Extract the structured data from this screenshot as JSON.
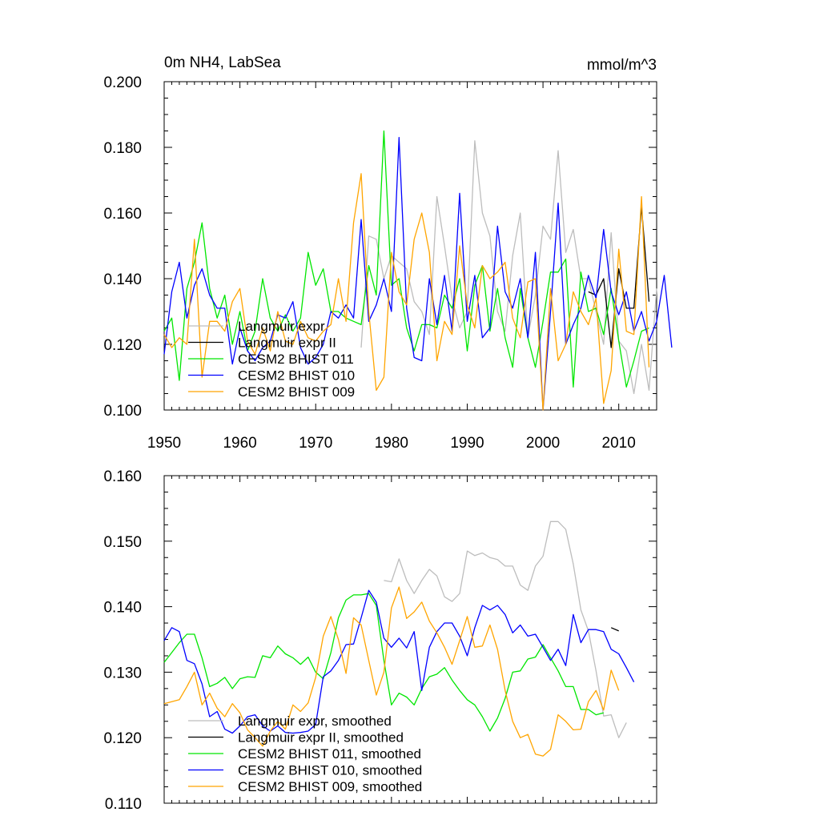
{
  "chart_data": [
    {
      "type": "line",
      "title": "0m NH4, LabSea",
      "units": "mmol/m^3",
      "xlim": [
        1950,
        2015
      ],
      "ylim": [
        0.1,
        0.2
      ],
      "x_ticks": [
        1950,
        1960,
        1970,
        1980,
        1990,
        2000,
        2010
      ],
      "y_ticks": [
        0.1,
        0.12,
        0.14,
        0.16,
        0.18,
        0.2
      ],
      "x_tick_labels": [
        "1950",
        "1960",
        "1970",
        "1980",
        "1990",
        "2000",
        "2010"
      ],
      "y_tick_labels": [
        "0.100",
        "0.120",
        "0.140",
        "0.160",
        "0.180",
        "0.200"
      ],
      "legend_position": "lower-left",
      "series": [
        {
          "name": "Langmuir expr",
          "color": "#bdbdbd",
          "x_start": 1976,
          "values": [
            0.119,
            0.153,
            0.152,
            0.14,
            0.147,
            0.145,
            0.143,
            0.133,
            0.13,
            0.123,
            0.165,
            0.15,
            0.134,
            0.125,
            0.13,
            0.182,
            0.16,
            0.153,
            0.13,
            0.124,
            0.147,
            0.16,
            0.122,
            0.135,
            0.156,
            0.152,
            0.179,
            0.148,
            0.155,
            0.14,
            0.14,
            0.13,
            0.12,
            0.154,
            0.121,
            0.118,
            0.105,
            0.12,
            0.106,
            0.137
          ]
        },
        {
          "name": "Langmuir expr II",
          "color": "#000000",
          "x_start": 2006,
          "values": [
            0.136,
            0.135,
            0.14,
            0.119,
            0.143,
            0.131,
            0.131,
            0.162,
            0.133
          ]
        },
        {
          "name": "CESM2 BHIST 011",
          "color": "#00e600",
          "x_start": 1950,
          "values": [
            0.124,
            0.128,
            0.109,
            0.137,
            0.145,
            0.157,
            0.137,
            0.128,
            0.135,
            0.12,
            0.13,
            0.118,
            0.124,
            0.14,
            0.128,
            0.124,
            0.129,
            0.124,
            0.128,
            0.148,
            0.138,
            0.143,
            0.13,
            0.13,
            0.128,
            0.127,
            0.126,
            0.144,
            0.135,
            0.185,
            0.138,
            0.14,
            0.125,
            0.118,
            0.126,
            0.126,
            0.125,
            0.135,
            0.131,
            0.14,
            0.118,
            0.138,
            0.144,
            0.124,
            0.137,
            0.122,
            0.113,
            0.137,
            0.122,
            0.113,
            0.127,
            0.142,
            0.142,
            0.146,
            0.107,
            0.142,
            0.13,
            0.131,
            0.123,
            0.137,
            0.121,
            0.107,
            0.115,
            0.124,
            0.125
          ]
        },
        {
          "name": "CESM2 BHIST 010",
          "color": "#0000ff",
          "x_start": 1950,
          "values": [
            0.117,
            0.136,
            0.145,
            0.128,
            0.138,
            0.143,
            0.135,
            0.131,
            0.131,
            0.114,
            0.125,
            0.118,
            0.115,
            0.119,
            0.121,
            0.129,
            0.128,
            0.133,
            0.119,
            0.114,
            0.116,
            0.12,
            0.13,
            0.128,
            0.132,
            0.128,
            0.158,
            0.127,
            0.132,
            0.14,
            0.13,
            0.183,
            0.131,
            0.116,
            0.115,
            0.14,
            0.126,
            0.141,
            0.124,
            0.166,
            0.127,
            0.141,
            0.122,
            0.125,
            0.156,
            0.136,
            0.131,
            0.14,
            0.122,
            0.148,
            0.1,
            0.13,
            0.163,
            0.12,
            0.126,
            0.131,
            0.141,
            0.134,
            0.155,
            0.136,
            0.129,
            0.136,
            0.124,
            0.13,
            0.121,
            0.127,
            0.141,
            0.119
          ]
        },
        {
          "name": "CESM2 BHIST 009",
          "color": "#ffa500",
          "x_start": 1950,
          "values": [
            0.123,
            0.119,
            0.122,
            0.12,
            0.152,
            0.11,
            0.127,
            0.127,
            0.124,
            0.133,
            0.137,
            0.121,
            0.117,
            0.125,
            0.118,
            0.13,
            0.121,
            0.12,
            0.127,
            0.122,
            0.121,
            0.124,
            0.126,
            0.14,
            0.127,
            0.157,
            0.172,
            0.13,
            0.106,
            0.11,
            0.148,
            0.136,
            0.132,
            0.152,
            0.16,
            0.148,
            0.115,
            0.127,
            0.123,
            0.15,
            0.132,
            0.125,
            0.144,
            0.14,
            0.142,
            0.145,
            0.128,
            0.122,
            0.139,
            0.14,
            0.1,
            0.137,
            0.115,
            0.12,
            0.136,
            0.13,
            0.126,
            0.134,
            0.102,
            0.112,
            0.149,
            0.124,
            0.123,
            0.165,
            0.113
          ]
        }
      ]
    },
    {
      "type": "line",
      "xlim": [
        1950,
        2015
      ],
      "ylim": [
        0.11,
        0.16
      ],
      "x_ticks": [
        1950,
        1960,
        1970,
        1980,
        1990,
        2000,
        2010
      ],
      "y_ticks": [
        0.11,
        0.12,
        0.13,
        0.14,
        0.15,
        0.16
      ],
      "y_tick_labels": [
        "0.110",
        "0.120",
        "0.130",
        "0.140",
        "0.150",
        "0.160"
      ],
      "legend_position": "lower-left",
      "series": [
        {
          "name": "Langmuir expr, smoothed",
          "color": "#bdbdbd",
          "x_start": 1979,
          "values": [
            0.144,
            0.1438,
            0.1473,
            0.144,
            0.142,
            0.144,
            0.1457,
            0.1447,
            0.1415,
            0.1408,
            0.142,
            0.1485,
            0.1478,
            0.1482,
            0.1475,
            0.1472,
            0.1462,
            0.1462,
            0.1433,
            0.1425,
            0.1462,
            0.1477,
            0.153,
            0.153,
            0.1518,
            0.1465,
            0.1395,
            0.1363,
            0.1302,
            0.1233,
            0.1235,
            0.12,
            0.1223
          ]
        },
        {
          "name": "Langmuir expr II, smoothed",
          "color": "#000000",
          "x_start": 2009,
          "values": [
            0.1368,
            0.1363
          ]
        },
        {
          "name": "CESM2 BHIST 011, smoothed",
          "color": "#00e600",
          "x_start": 1950,
          "values": [
            0.1315,
            0.133,
            0.1345,
            0.1358,
            0.1358,
            0.1322,
            0.1278,
            0.1283,
            0.1292,
            0.1275,
            0.129,
            0.1293,
            0.1292,
            0.1325,
            0.1322,
            0.134,
            0.1328,
            0.1322,
            0.1312,
            0.1323,
            0.13,
            0.129,
            0.133,
            0.1383,
            0.141,
            0.1418,
            0.1418,
            0.142,
            0.1402,
            0.1318,
            0.125,
            0.1268,
            0.1262,
            0.125,
            0.1275,
            0.1293,
            0.1297,
            0.1307,
            0.1288,
            0.1272,
            0.1258,
            0.125,
            0.1232,
            0.121,
            0.123,
            0.126,
            0.13,
            0.1302,
            0.132,
            0.1323,
            0.1342,
            0.1322,
            0.1302,
            0.1278,
            0.1278,
            0.1243,
            0.1243,
            0.1235,
            0.1238
          ]
        },
        {
          "name": "CESM2 BHIST 010, smoothed",
          "color": "#0000ff",
          "x_start": 1950,
          "values": [
            0.1348,
            0.1368,
            0.1362,
            0.1318,
            0.1313,
            0.1282,
            0.1232,
            0.124,
            0.1213,
            0.1207,
            0.1218,
            0.1232,
            0.1235,
            0.1218,
            0.121,
            0.1218,
            0.1208,
            0.1207,
            0.1208,
            0.121,
            0.122,
            0.1293,
            0.1302,
            0.1318,
            0.1342,
            0.1343,
            0.1383,
            0.1425,
            0.1407,
            0.1352,
            0.1338,
            0.1352,
            0.1337,
            0.1362,
            0.1272,
            0.1338,
            0.1362,
            0.1375,
            0.1375,
            0.1355,
            0.1325,
            0.1368,
            0.1402,
            0.1395,
            0.1402,
            0.1388,
            0.136,
            0.1372,
            0.1355,
            0.1358,
            0.1338,
            0.1318,
            0.1335,
            0.131,
            0.1388,
            0.1345,
            0.1365,
            0.1365,
            0.1362,
            0.1335,
            0.1328,
            0.1307,
            0.1285
          ]
        },
        {
          "name": "CESM2 BHIST 009, smoothed",
          "color": "#ffa500",
          "x_start": 1950,
          "values": [
            0.1252,
            0.1255,
            0.1258,
            0.1278,
            0.13,
            0.125,
            0.1268,
            0.1245,
            0.1232,
            0.1252,
            0.1238,
            0.1212,
            0.12,
            0.1187,
            0.121,
            0.1225,
            0.1213,
            0.125,
            0.124,
            0.1253,
            0.1292,
            0.1355,
            0.1385,
            0.135,
            0.1298,
            0.1383,
            0.1372,
            0.1318,
            0.1265,
            0.13,
            0.1398,
            0.143,
            0.1382,
            0.1392,
            0.1407,
            0.1378,
            0.136,
            0.1338,
            0.1312,
            0.1348,
            0.1385,
            0.1338,
            0.134,
            0.1372,
            0.1335,
            0.1272,
            0.1225,
            0.12,
            0.1205,
            0.1175,
            0.1172,
            0.1182,
            0.1235,
            0.1225,
            0.1212,
            0.1213,
            0.1255,
            0.1272,
            0.1242,
            0.1303,
            0.1272
          ]
        }
      ]
    }
  ]
}
